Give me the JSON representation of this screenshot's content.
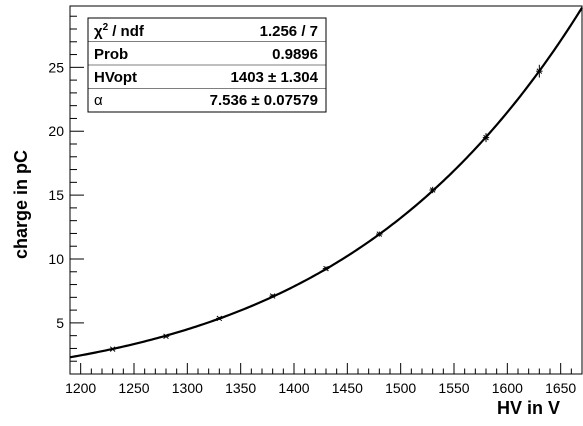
{
  "chart_data": {
    "type": "scatter",
    "title": "",
    "xlabel": "HV in V",
    "ylabel": "charge in pC",
    "xlim": [
      1190,
      1670
    ],
    "ylim": [
      1,
      29.8
    ],
    "x_ticks": [
      "1200",
      "1250",
      "1300",
      "1350",
      "1400",
      "1450",
      "1500",
      "1550",
      "1600",
      "1650"
    ],
    "y_ticks": [
      "5",
      "10",
      "15",
      "20",
      "25"
    ],
    "grid": false,
    "series": [
      {
        "points": [
          {
            "x": 1230,
            "y": 2.95,
            "err": 0.08
          },
          {
            "x": 1280,
            "y": 3.95,
            "err": 0.1
          },
          {
            "x": 1330,
            "y": 5.35,
            "err": 0.12
          },
          {
            "x": 1380,
            "y": 7.1,
            "err": 0.14
          },
          {
            "x": 1430,
            "y": 9.25,
            "err": 0.16
          },
          {
            "x": 1480,
            "y": 11.95,
            "err": 0.2
          },
          {
            "x": 1530,
            "y": 15.4,
            "err": 0.25
          },
          {
            "x": 1580,
            "y": 19.5,
            "err": 0.35
          },
          {
            "x": 1630,
            "y": 24.7,
            "err": 0.5
          }
        ]
      }
    ],
    "fit": {
      "model": "power law (HV/HVopt)^alpha",
      "HVopt": 1403,
      "alpha": 7.536,
      "x_range": [
        1190,
        1670
      ]
    },
    "stats_box": {
      "placement": "top-left",
      "rows": [
        {
          "key": "chi2",
          "label": "/ ndf",
          "value": "1.256 / 7"
        },
        {
          "key": "prob",
          "label": "Prob",
          "value": "0.9896"
        },
        {
          "key": "hvopt",
          "label": "HVopt",
          "value": "1403 ± 1.304"
        },
        {
          "key": "alpha",
          "label": "α",
          "value": "7.536 ± 0.07579"
        }
      ]
    }
  }
}
